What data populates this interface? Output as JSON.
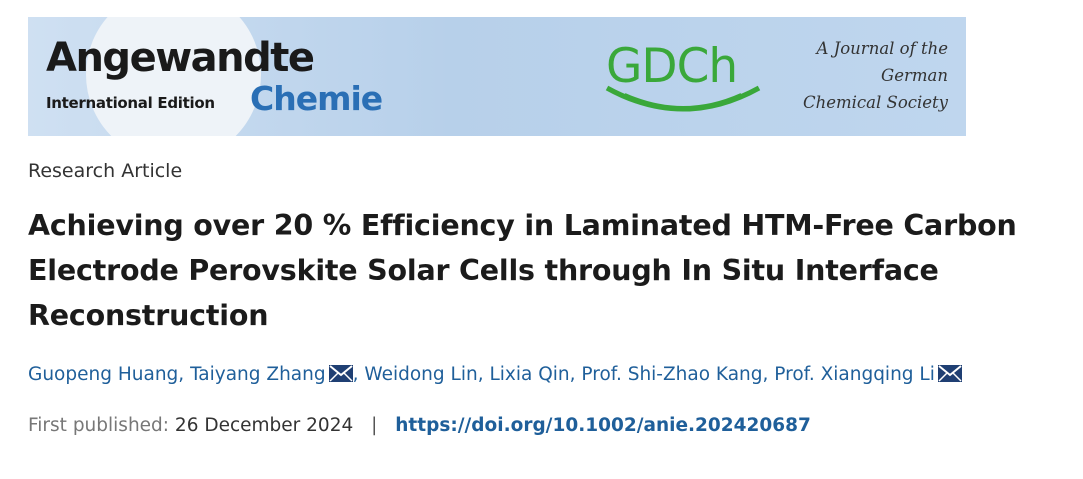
{
  "banner": {
    "logo_word": "Angewandte",
    "edition": "International Edition",
    "logo_chemie": "Chemie",
    "gdch": "GDCh",
    "journal_line1": "A Journal of the",
    "journal_line2": "German",
    "journal_line3": "Chemical Society",
    "colors": {
      "background": "#b9d3ec",
      "chemie": "#2a6fb5",
      "gdch": "#3aa83a"
    }
  },
  "article": {
    "type": "Research Article",
    "title_line1": "Achieving over 20 % Efficiency in Laminated HTM-Free Carbon",
    "title_line2": "Electrode Perovskite Solar Cells through In Situ Interface",
    "title_line3": "Reconstruction",
    "authors": [
      {
        "name": "Guopeng Huang",
        "email_icon": false
      },
      {
        "name": "Taiyang Zhang",
        "email_icon": true
      },
      {
        "name": "Weidong Lin",
        "email_icon": false
      },
      {
        "name": "Lixia Qin",
        "email_icon": false
      },
      {
        "name": "Prof. Shi-Zhao Kang",
        "email_icon": false
      },
      {
        "name": "Prof. Xiangqing Li",
        "email_icon": true
      }
    ],
    "first_published_label": "First published:",
    "first_published_date": "26 December 2024",
    "separator": "|",
    "doi": "https://doi.org/10.1002/anie.202420687"
  },
  "icons": {
    "mail": "envelope-icon"
  }
}
